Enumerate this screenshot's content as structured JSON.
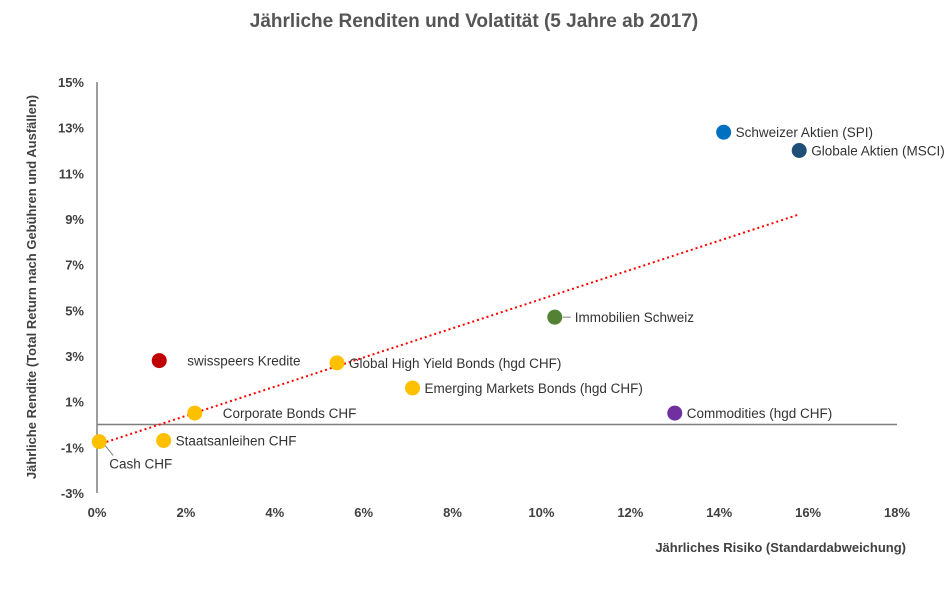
{
  "chart_data": {
    "type": "scatter",
    "title": "Jährliche Renditen und Volatität (5 Jahre ab 2017)",
    "xlabel": "Jährliches Risiko (Standardabweichung)",
    "ylabel": "Jährliche Rendite (Total Return nach Gebühren und Ausfällen)",
    "xlim": [
      0,
      18
    ],
    "ylim": [
      -3,
      15
    ],
    "x_ticks": [
      {
        "value": 0,
        "label": "0%"
      },
      {
        "value": 2,
        "label": "2%"
      },
      {
        "value": 4,
        "label": "4%"
      },
      {
        "value": 6,
        "label": "6%"
      },
      {
        "value": 8,
        "label": "8%"
      },
      {
        "value": 10,
        "label": "10%"
      },
      {
        "value": 12,
        "label": "12%"
      },
      {
        "value": 14,
        "label": "14%"
      },
      {
        "value": 16,
        "label": "16%"
      },
      {
        "value": 18,
        "label": "18%"
      }
    ],
    "y_ticks": [
      {
        "value": 15,
        "label": "15%"
      },
      {
        "value": 13,
        "label": "13%"
      },
      {
        "value": 11,
        "label": "11%"
      },
      {
        "value": 9,
        "label": "9%"
      },
      {
        "value": 7,
        "label": "7%"
      },
      {
        "value": 5,
        "label": "5%"
      },
      {
        "value": 3,
        "label": "3%"
      },
      {
        "value": 1,
        "label": "1%"
      },
      {
        "value": -1,
        "label": "-1%"
      },
      {
        "value": -3,
        "label": "-3%"
      }
    ],
    "points": [
      {
        "name": "Schweizer Aktien (SPI)",
        "x": 14.1,
        "y": 12.8,
        "color": "#0070c0",
        "label_pos": "right"
      },
      {
        "name": "Globale Aktien (MSCI)",
        "x": 15.8,
        "y": 12.0,
        "color": "#1f4e79",
        "label_pos": "right"
      },
      {
        "name": "Immobilien Schweiz",
        "x": 10.3,
        "y": 4.7,
        "color": "#548235",
        "label_pos": "right-leader"
      },
      {
        "name": "swisspeers Kredite",
        "x": 1.4,
        "y": 2.8,
        "color": "#c00000",
        "label_pos": "right-far"
      },
      {
        "name": "Global High Yield Bonds (hgd CHF)",
        "x": 5.4,
        "y": 2.7,
        "color": "#ffc000",
        "label_pos": "right"
      },
      {
        "name": "Emerging Markets Bonds (hgd CHF)",
        "x": 7.1,
        "y": 1.6,
        "color": "#ffc000",
        "label_pos": "right"
      },
      {
        "name": "Commodities (hgd CHF)",
        "x": 13.0,
        "y": 0.5,
        "color": "#7030a0",
        "label_pos": "right"
      },
      {
        "name": "Corporate Bonds CHF",
        "x": 2.2,
        "y": 0.5,
        "color": "#ffc000",
        "label_pos": "right-far"
      },
      {
        "name": "Staatsanleihen CHF",
        "x": 1.5,
        "y": -0.7,
        "color": "#ffc000",
        "label_pos": "right"
      },
      {
        "name": "Cash CHF",
        "x": 0.05,
        "y": -0.75,
        "color": "#ffc000",
        "label_pos": "below-leader"
      }
    ],
    "trendline": {
      "type": "linear",
      "x": [
        0,
        15.8
      ],
      "y": [
        -0.9,
        9.2
      ],
      "color": "#ff0000",
      "style": "dotted"
    },
    "zero_line": 0,
    "grid": false,
    "legend": "none"
  }
}
